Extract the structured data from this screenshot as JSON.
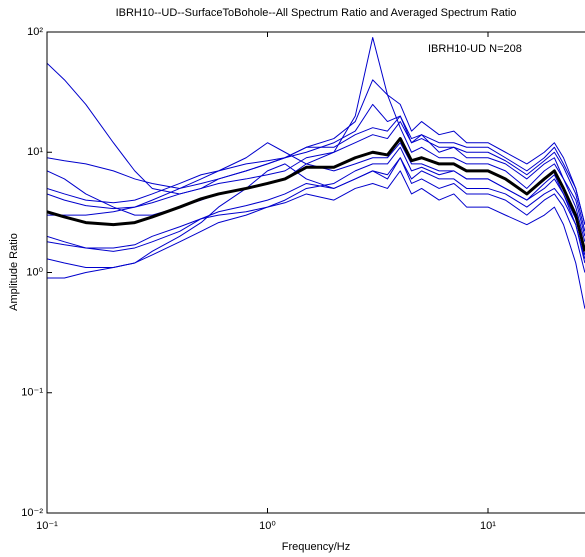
{
  "chart_data": {
    "type": "line",
    "title": "IBRH10--UD--SurfaceToBohole--All Spectrum Ratio and Averaged Spectrum Ratio",
    "xlabel": "Frequency/Hz",
    "ylabel": "Amplitude Ratio",
    "annotation": "IBRH10-UD  N=208",
    "annotation_color": "#c00000",
    "xscale": "log",
    "yscale": "log",
    "xlim": [
      0.1,
      27.5
    ],
    "ylim": [
      0.01,
      100
    ],
    "xticks": [
      {
        "value": 0.1,
        "label": "10⁻¹"
      },
      {
        "value": 1,
        "label": "10⁰"
      },
      {
        "value": 10,
        "label": "10¹"
      }
    ],
    "yticks": [
      {
        "value": 0.01,
        "label": "10⁻²"
      },
      {
        "value": 0.1,
        "label": "10⁻¹"
      },
      {
        "value": 1,
        "label": "10⁰"
      },
      {
        "value": 10,
        "label": "10¹"
      },
      {
        "value": 100,
        "label": "10²"
      }
    ],
    "x": [
      0.1,
      0.12,
      0.15,
      0.2,
      0.25,
      0.3,
      0.4,
      0.5,
      0.6,
      0.8,
      1,
      1.2,
      1.5,
      2,
      2.5,
      3,
      3.5,
      4,
      4.5,
      5,
      6,
      7,
      8,
      10,
      12,
      15,
      18,
      20,
      22,
      25,
      27.5
    ],
    "series": [
      {
        "color": "#0000cc",
        "values": [
          55,
          40,
          25,
          12,
          7,
          5,
          4.5,
          5,
          6,
          7,
          8,
          9,
          10,
          12,
          15,
          25,
          18,
          20,
          12,
          14,
          10,
          11,
          9,
          9,
          8,
          6,
          8,
          9,
          6,
          4,
          2
        ]
      },
      {
        "color": "#0000cc",
        "values": [
          9,
          8.5,
          8,
          7,
          6,
          5.5,
          5,
          5.5,
          6,
          7,
          8,
          9,
          11,
          13,
          18,
          40,
          30,
          25,
          15,
          18,
          14,
          15,
          12,
          12,
          10,
          8,
          10,
          12,
          9,
          5,
          2.5
        ]
      },
      {
        "color": "#0000cc",
        "values": [
          0.9,
          0.9,
          1,
          1.1,
          1.2,
          1.4,
          1.8,
          2.2,
          2.6,
          3,
          3.5,
          3.8,
          4.5,
          4,
          5,
          5.5,
          5,
          7,
          4.5,
          5,
          4,
          4.5,
          3.5,
          3.5,
          3,
          2.5,
          3,
          3.5,
          2.5,
          1.2,
          0.5
        ]
      },
      {
        "color": "#0000cc",
        "values": [
          2,
          1.8,
          1.6,
          1.5,
          1.6,
          1.8,
          2.2,
          2.8,
          3.2,
          3.6,
          4,
          4.5,
          5.5,
          5,
          6,
          7,
          6,
          9,
          5.5,
          6,
          5,
          5.5,
          4.5,
          4.5,
          4,
          3,
          4,
          4.5,
          3.5,
          2,
          1
        ]
      },
      {
        "color": "#0000cc",
        "values": [
          5,
          4.5,
          4,
          3.8,
          4,
          4.5,
          5.5,
          6.5,
          7,
          8,
          8.5,
          9,
          11,
          11,
          14,
          16,
          15,
          20,
          13,
          14,
          12,
          12,
          11,
          11,
          9,
          7,
          9,
          11,
          8,
          5,
          2.5
        ]
      },
      {
        "color": "#0000cc",
        "values": [
          1.3,
          1.2,
          1.1,
          1.1,
          1.2,
          1.5,
          2,
          2.6,
          3.5,
          5,
          7,
          8,
          6,
          5,
          6,
          7,
          6.5,
          9,
          6,
          7,
          6,
          6,
          5,
          5,
          4.5,
          3.5,
          4.5,
          5,
          4,
          2.5,
          1.2
        ]
      },
      {
        "color": "#0000cc",
        "values": [
          7,
          6,
          4.5,
          3.5,
          3,
          3,
          3.5,
          4,
          4.5,
          5,
          5.5,
          6,
          8,
          10,
          20,
          90,
          30,
          16,
          10,
          11,
          9,
          9,
          8,
          8,
          7,
          5,
          7,
          8,
          6,
          3.5,
          1.8
        ]
      },
      {
        "color": "#0000cc",
        "values": [
          3,
          3,
          3,
          3.2,
          3.5,
          4,
          5,
          6,
          7,
          9,
          12,
          10,
          8,
          7,
          8,
          9,
          9,
          12,
          8,
          8,
          7,
          7,
          6,
          6,
          5,
          4,
          5,
          6,
          4.5,
          2.5,
          1.3
        ]
      },
      {
        "color": "#0000cc",
        "values": [
          1.8,
          1.7,
          1.6,
          1.6,
          1.7,
          2,
          2.4,
          2.8,
          3,
          3.2,
          3.5,
          4,
          5,
          5.5,
          7,
          8,
          8,
          11,
          7,
          7.5,
          6.5,
          7,
          6,
          6,
          5,
          4,
          5.5,
          6.5,
          4.5,
          2.8,
          1.4
        ]
      },
      {
        "color": "#0000cc",
        "values": [
          4.5,
          4,
          3.6,
          3.4,
          3.5,
          3.8,
          4.5,
          5,
          5.5,
          6,
          6.5,
          7,
          9,
          10,
          12,
          14,
          13,
          18,
          12,
          13,
          11,
          11,
          10,
          10,
          8.5,
          6.5,
          8.5,
          10,
          7.5,
          4.5,
          2.2
        ]
      },
      {
        "color": "#000000",
        "width": 3,
        "values": [
          3.2,
          2.9,
          2.6,
          2.5,
          2.6,
          2.9,
          3.5,
          4.1,
          4.5,
          5,
          5.5,
          6,
          7.5,
          7.5,
          9,
          10,
          9.5,
          13,
          8.5,
          9,
          8,
          8,
          7,
          7,
          6,
          4.5,
          6,
          7,
          5,
          3,
          1.5
        ]
      }
    ]
  }
}
